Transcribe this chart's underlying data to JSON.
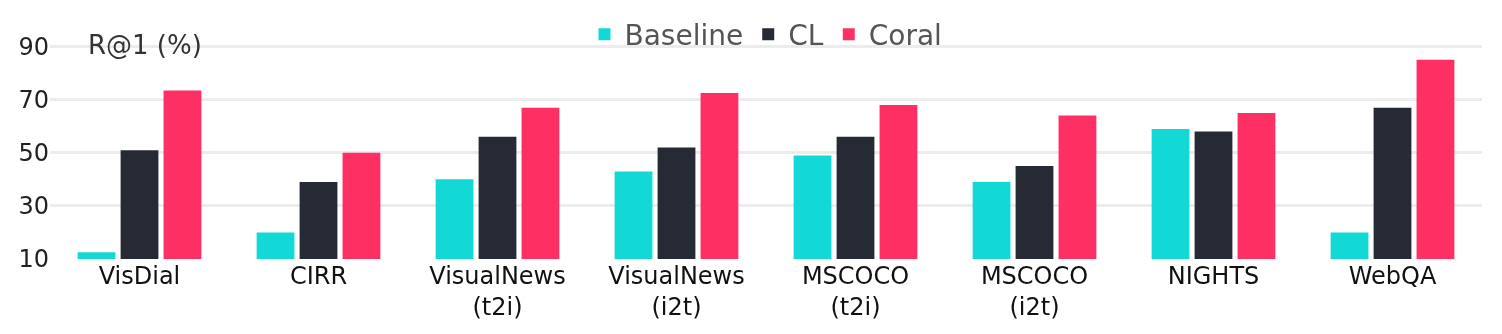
{
  "chart_data": {
    "type": "bar",
    "ylabel": "R@1 (%)",
    "categories": [
      "VisDial",
      "CIRR",
      "VisualNews\n(t2i)",
      "VisualNews\n(i2t)",
      "MSCOCO\n(t2i)",
      "MSCOCO\n(i2t)",
      "NIGHTS",
      "WebQA"
    ],
    "series": [
      {
        "name": "Baseline",
        "color": "#12d8d6",
        "values": [
          12.5,
          20,
          40,
          43,
          49,
          39,
          59,
          20
        ]
      },
      {
        "name": "CL",
        "color": "#262a35",
        "values": [
          51,
          39,
          56,
          52,
          56,
          45,
          58,
          67
        ]
      },
      {
        "name": "Coral",
        "color": "#fe2f63",
        "values": [
          73.5,
          50,
          67,
          72.5,
          68,
          64,
          65,
          85
        ]
      }
    ],
    "ylim": [
      10,
      97
    ],
    "yticks": [
      10,
      30,
      50,
      70,
      90
    ],
    "grid": "y",
    "legend": "top"
  }
}
